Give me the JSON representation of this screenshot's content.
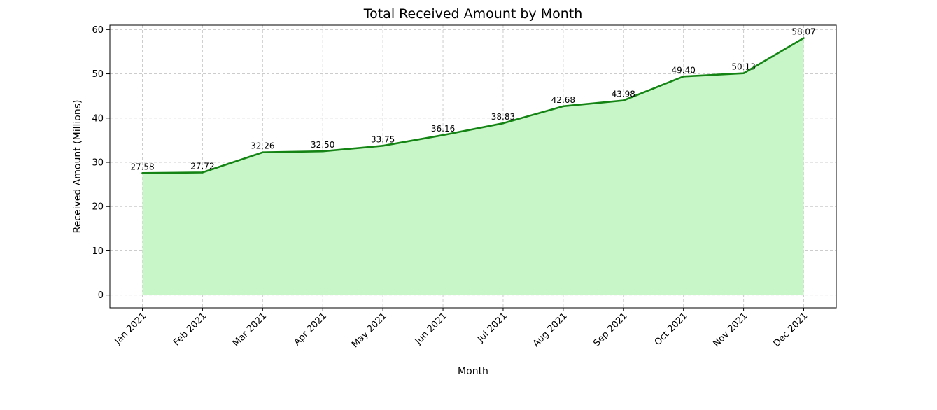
{
  "chart_data": {
    "type": "area",
    "title": "Total Received Amount by Month",
    "xlabel": "Month",
    "ylabel": "Received Amount (Millions)",
    "categories": [
      "Jan 2021",
      "Feb 2021",
      "Mar 2021",
      "Apr 2021",
      "May 2021",
      "Jun 2021",
      "Jul 2021",
      "Aug 2021",
      "Sep 2021",
      "Oct 2021",
      "Nov 2021",
      "Dec 2021"
    ],
    "values": [
      27.58,
      27.72,
      32.26,
      32.5,
      33.75,
      36.16,
      38.83,
      42.68,
      43.98,
      49.4,
      50.13,
      58.07
    ],
    "value_labels": [
      "27.58",
      "27.72",
      "32.26",
      "32.50",
      "33.75",
      "36.16",
      "38.83",
      "42.68",
      "43.98",
      "49.40",
      "50.13",
      "58.07"
    ],
    "ylim": [
      -2.9,
      61.0
    ],
    "yticks": [
      0,
      10,
      20,
      30,
      40,
      50,
      60
    ],
    "grid": true,
    "line_color": "#148414",
    "fill_color": "#c8f6c8"
  }
}
